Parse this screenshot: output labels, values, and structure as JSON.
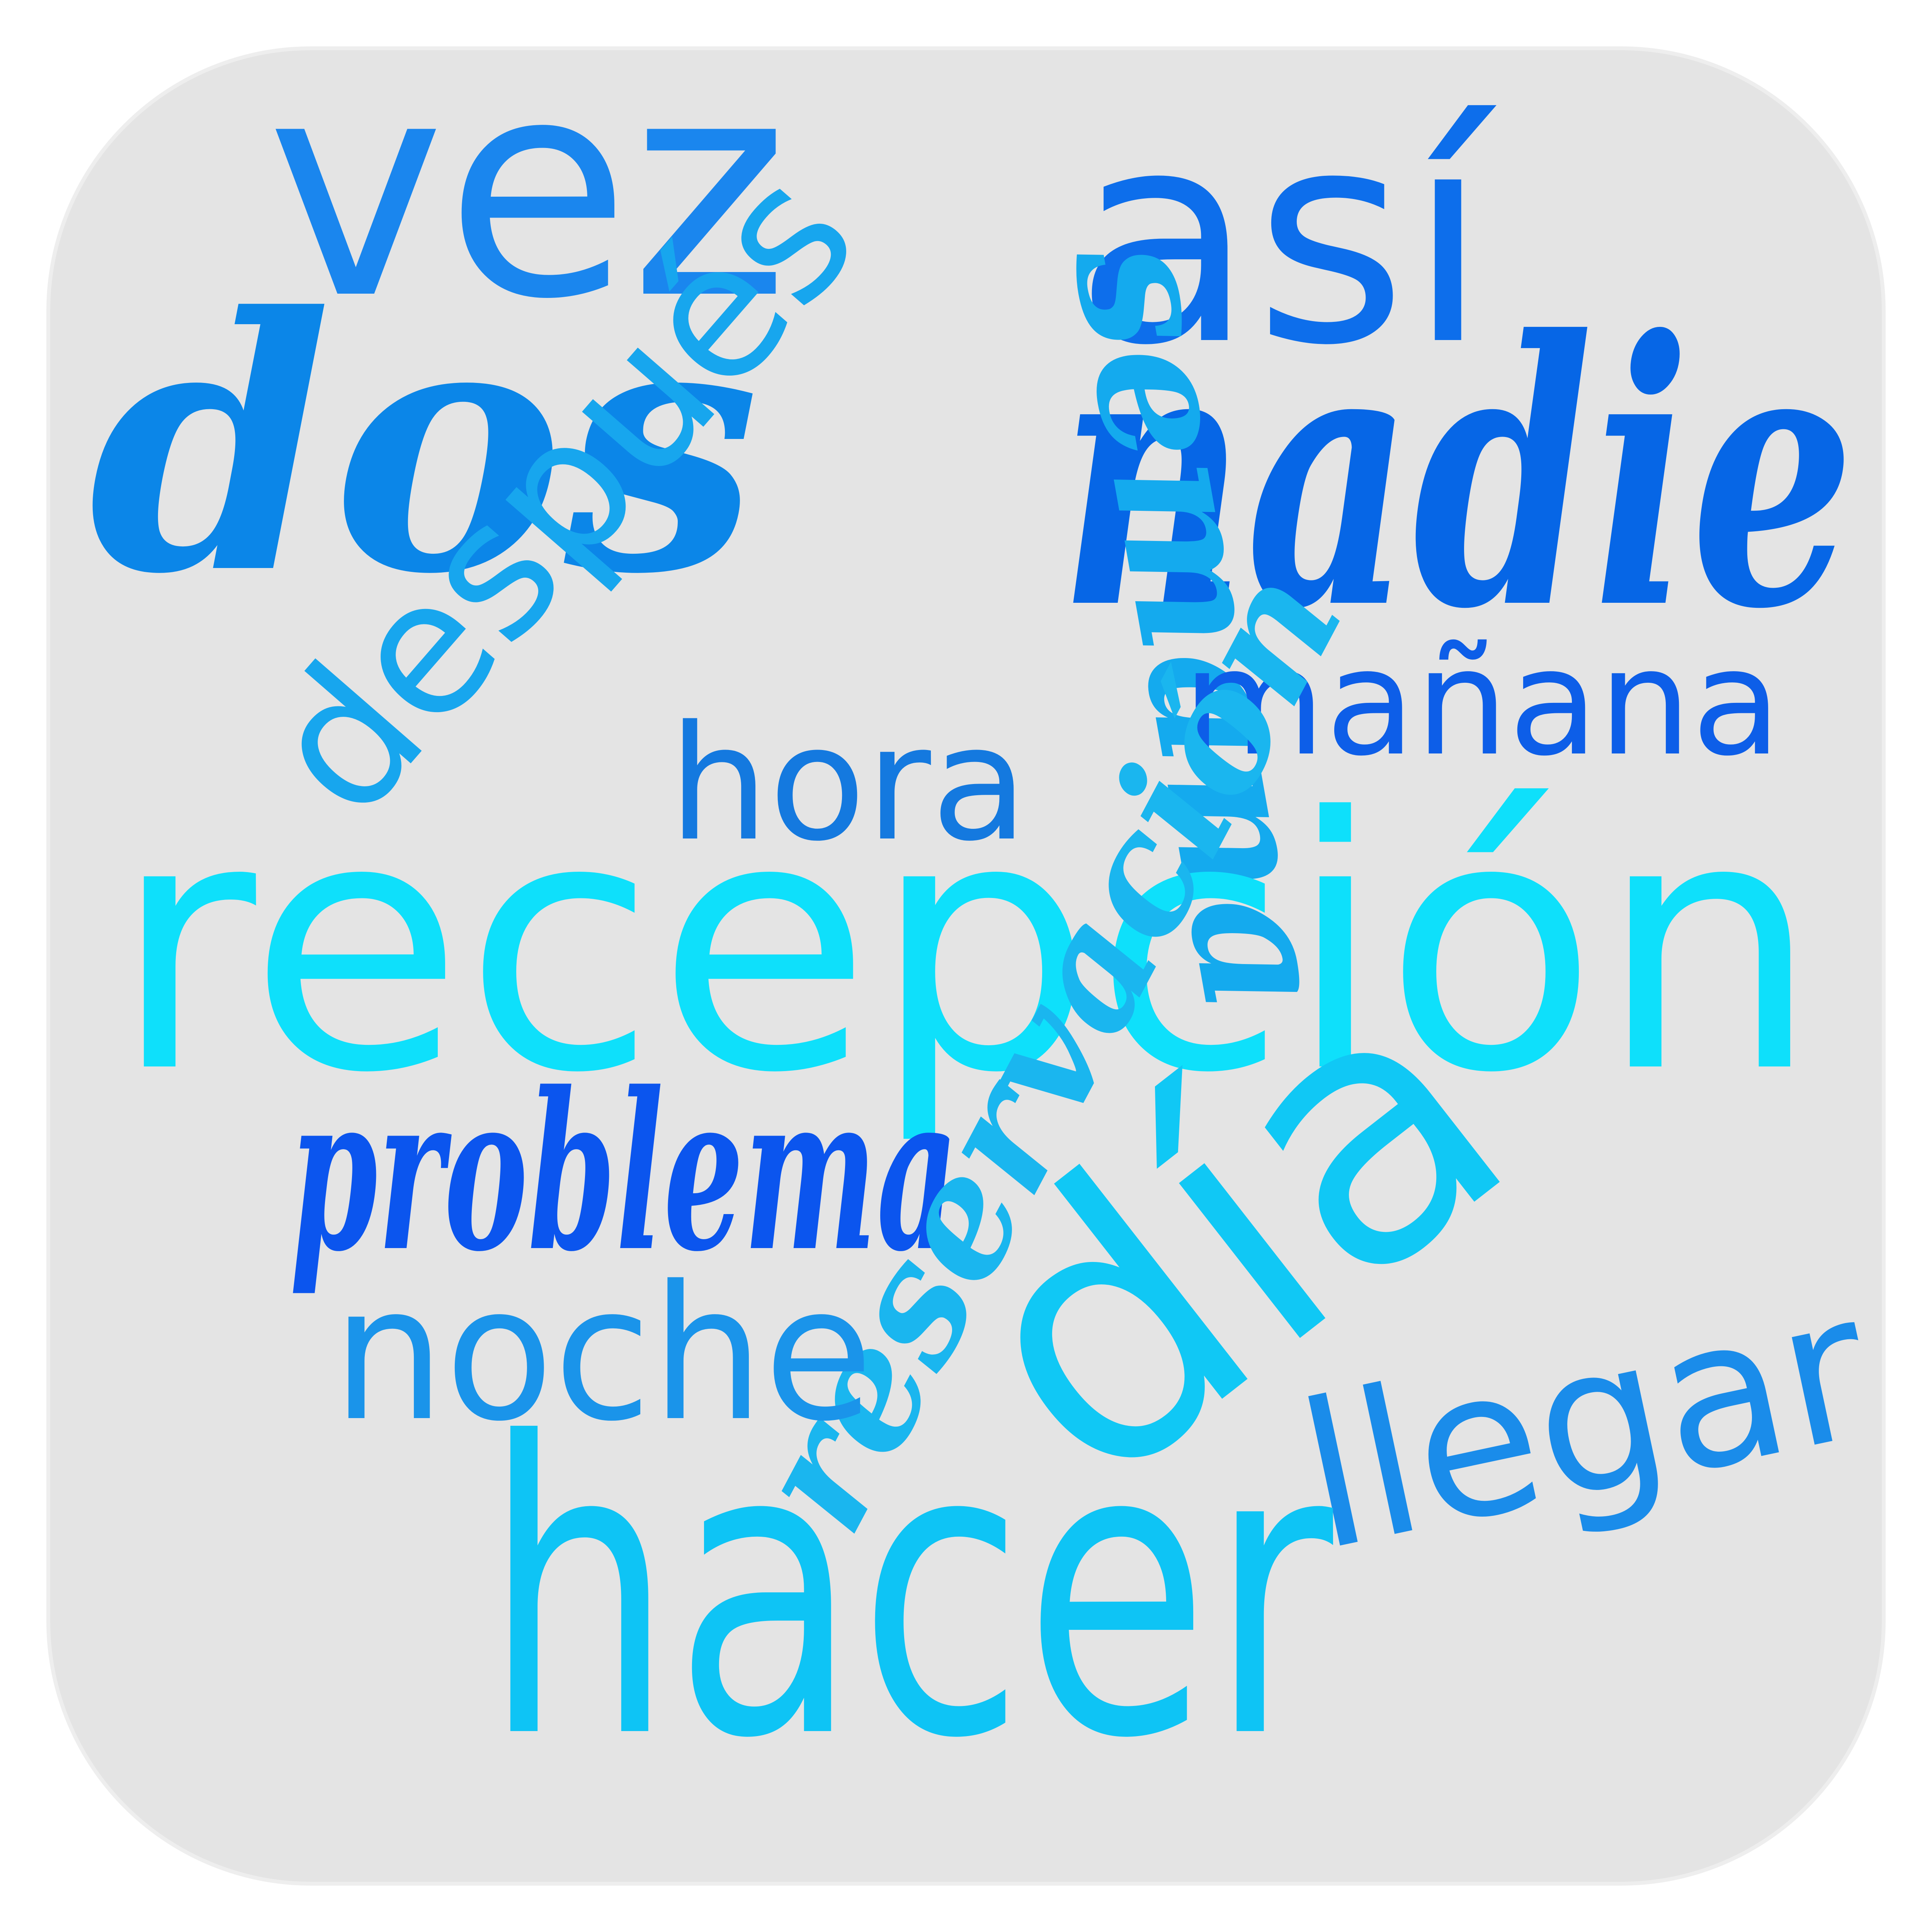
{
  "canvas": {
    "background": "#ffffff",
    "panel_fill": "#e4e4e4",
    "panel_stroke": "#eeeeee"
  },
  "words": {
    "vez": "vez",
    "asi": "así",
    "dos": "dos",
    "nadie": "nadie",
    "despues": "después",
    "semana": "semana",
    "manana": "mañana",
    "hora": "hora",
    "recepcion": "recepción",
    "problema": "problema",
    "reservacion": "reservación",
    "dia": "día",
    "noche": "noche",
    "llegar": "llegar",
    "hacer": "hacer"
  },
  "colors": {
    "vez": "#1a86ee",
    "asi": "#0d6eeb",
    "dos": "#0b86e8",
    "nadie": "#0666e6",
    "despues": "#17a6ee",
    "semana": "#14aaee",
    "manana": "#0d5ee8",
    "hora": "#1479df",
    "recepcion": "#0ee0fb",
    "problema": "#0b55ee",
    "reservacion": "#1ab6ef",
    "dia": "#10c8f5",
    "noche": "#1a94ea",
    "llegar": "#1a8cea",
    "hacer": "#0ec4f5"
  }
}
